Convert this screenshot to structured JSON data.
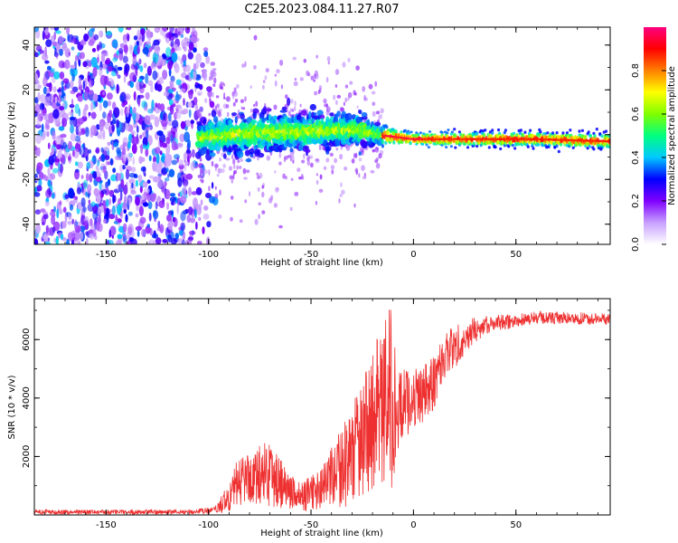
{
  "title": "C2E5.2023.084.11.27.R07",
  "chart_data": [
    {
      "type": "heatmap",
      "xlabel": "Height of straight line (km)",
      "ylabel": "Frequency (Hz)",
      "xlim": [
        -185,
        96
      ],
      "ylim": [
        -49,
        48
      ],
      "xticks": [
        -150,
        -100,
        -50,
        0,
        50
      ],
      "yticks": [
        -40,
        -20,
        0,
        20,
        40
      ],
      "ytick_labels": [
        "-40",
        "-20",
        "0",
        "20",
        "40"
      ],
      "xtick_labels": [
        "-150",
        "-100",
        "-50",
        "0",
        "50"
      ],
      "noise_region_x": [
        -185,
        -95
      ],
      "signal_band": [
        {
          "x": -105,
          "center": -2,
          "halfwidth": 6
        },
        {
          "x": -90,
          "center": 0,
          "halfwidth": 7
        },
        {
          "x": -70,
          "center": 1,
          "halfwidth": 8
        },
        {
          "x": -55,
          "center": 1,
          "halfwidth": 7
        },
        {
          "x": -40,
          "center": 2,
          "halfwidth": 6
        },
        {
          "x": -25,
          "center": 2,
          "halfwidth": 6
        },
        {
          "x": -18,
          "center": 0,
          "halfwidth": 4
        },
        {
          "x": 0,
          "center": -2,
          "halfwidth": 2.5
        },
        {
          "x": 30,
          "center": -2,
          "halfwidth": 3
        },
        {
          "x": 60,
          "center": -2,
          "halfwidth": 3
        },
        {
          "x": 96,
          "center": -3,
          "halfwidth": 3
        }
      ],
      "colorbar": {
        "label": "Normalized spectral amplitude",
        "range": [
          0,
          1
        ],
        "ticks": [
          0.0,
          0.2,
          0.4,
          0.6,
          0.8
        ],
        "tick_labels": [
          "0.0",
          "0.2",
          "0.4",
          "0.6",
          "0.8"
        ],
        "colors": [
          "#ffffff",
          "#c8a0ff",
          "#8000ff",
          "#0000ff",
          "#00c8ff",
          "#00ff80",
          "#80ff00",
          "#ffff00",
          "#ff8000",
          "#ff0000",
          "#ff0080"
        ]
      }
    },
    {
      "type": "line",
      "xlabel": "Height of straight line (km)",
      "ylabel": "SNR (10 * v/v)",
      "xlim": [
        -185,
        96
      ],
      "ylim": [
        0,
        7400
      ],
      "xticks": [
        -150,
        -100,
        -50,
        0,
        50
      ],
      "xtick_labels": [
        "-150",
        "-100",
        "-50",
        "0",
        "50"
      ],
      "yticks": [
        2000,
        4000,
        6000
      ],
      "ytick_labels": [
        "2000",
        "4000",
        "6000"
      ],
      "line_color": "#ee3030",
      "envelope": [
        {
          "x": -185,
          "mean": 100,
          "spread": 80
        },
        {
          "x": -110,
          "mean": 100,
          "spread": 80
        },
        {
          "x": -97,
          "mean": 150,
          "spread": 120
        },
        {
          "x": -90,
          "mean": 600,
          "spread": 500
        },
        {
          "x": -85,
          "mean": 1200,
          "spread": 900
        },
        {
          "x": -78,
          "mean": 1300,
          "spread": 900
        },
        {
          "x": -70,
          "mean": 1500,
          "spread": 1200
        },
        {
          "x": -62,
          "mean": 900,
          "spread": 700
        },
        {
          "x": -55,
          "mean": 600,
          "spread": 500
        },
        {
          "x": -45,
          "mean": 900,
          "spread": 700
        },
        {
          "x": -35,
          "mean": 1600,
          "spread": 1400
        },
        {
          "x": -25,
          "mean": 2600,
          "spread": 2000
        },
        {
          "x": -15,
          "mean": 3800,
          "spread": 2800
        },
        {
          "x": -11,
          "mean": 3800,
          "spread": 3400
        },
        {
          "x": -8,
          "mean": 3600,
          "spread": 1400
        },
        {
          "x": 0,
          "mean": 4000,
          "spread": 1000
        },
        {
          "x": 8,
          "mean": 4300,
          "spread": 1000
        },
        {
          "x": 15,
          "mean": 5400,
          "spread": 900
        },
        {
          "x": 25,
          "mean": 6100,
          "spread": 600
        },
        {
          "x": 35,
          "mean": 6500,
          "spread": 300
        },
        {
          "x": 60,
          "mean": 6750,
          "spread": 220
        },
        {
          "x": 96,
          "mean": 6700,
          "spread": 200
        }
      ]
    }
  ]
}
